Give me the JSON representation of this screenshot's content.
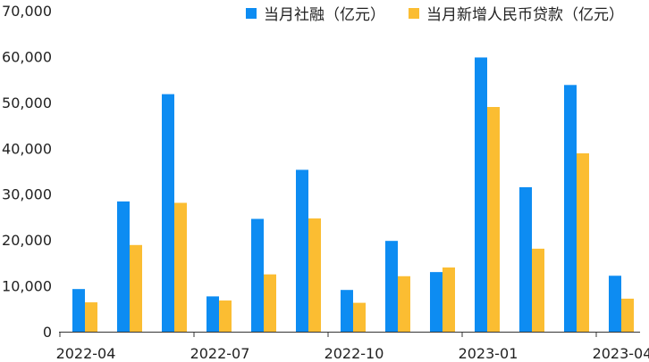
{
  "chart_data": {
    "type": "bar",
    "title": "",
    "xlabel": "",
    "ylabel": "",
    "ylim": [
      0,
      70000
    ],
    "yticks": [
      0,
      10000,
      20000,
      30000,
      40000,
      50000,
      60000,
      70000
    ],
    "ytick_labels": [
      "0",
      "10,000",
      "20,000",
      "30,000",
      "40,000",
      "50,000",
      "60,000",
      "70,000"
    ],
    "categories": [
      "2022-04",
      "2022-05",
      "2022-06",
      "2022-07",
      "2022-08",
      "2022-09",
      "2022-10",
      "2022-11",
      "2022-12",
      "2023-01",
      "2023-02",
      "2023-03",
      "2023-04"
    ],
    "xtick_labels": [
      {
        "index": 0,
        "label": "2022-04"
      },
      {
        "index": 3,
        "label": "2022-07"
      },
      {
        "index": 6,
        "label": "2022-10"
      },
      {
        "index": 9,
        "label": "2023-01"
      },
      {
        "index": 12,
        "label": "2023-04"
      }
    ],
    "legend_position": "top-right",
    "grid": false,
    "series": [
      {
        "name": "当月社融（亿元）",
        "color": "#0d8cf2",
        "values": [
          9300,
          28400,
          51800,
          7700,
          24600,
          35300,
          9100,
          19800,
          13000,
          59800,
          31500,
          53800,
          12200
        ]
      },
      {
        "name": "当月新增人民币贷款（亿元）",
        "color": "#fbbd32",
        "values": [
          6400,
          18900,
          28100,
          6800,
          12500,
          24700,
          6300,
          12100,
          14000,
          49000,
          18100,
          38900,
          7200
        ]
      }
    ]
  }
}
